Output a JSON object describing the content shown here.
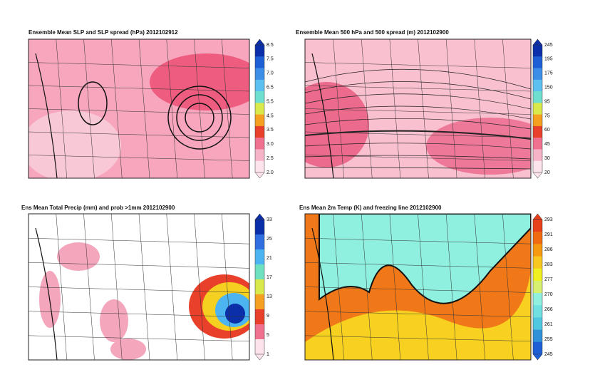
{
  "panels": [
    {
      "title": "Ensemble Mean SLP and SLP spread (hPa) 2012102912",
      "colorbar_labels": [
        "8.5",
        "7.5",
        "7.0",
        "6.5",
        "5.5",
        "4.5",
        "3.5",
        "3.0",
        "2.5",
        "2.0"
      ],
      "colors": [
        "#0a2fa8",
        "#1f5fd6",
        "#3c8ee6",
        "#5cc0f0",
        "#6fe0d0",
        "#d9e84a",
        "#f5a020",
        "#e8402a",
        "#f07090",
        "#f6b4c8",
        "#fde4ec"
      ]
    },
    {
      "title": "Ensemble Mean 500 hPa and 500 spread (m) 2012102900",
      "colorbar_labels": [
        "245",
        "195",
        "175",
        "150",
        "95",
        "75",
        "60",
        "45",
        "30",
        "20"
      ],
      "colors": [
        "#0a2fa8",
        "#1f5fd6",
        "#3c8ee6",
        "#5cc0f0",
        "#6fe0d0",
        "#d9e84a",
        "#f5a020",
        "#e8402a",
        "#f07090",
        "#f6b4c8",
        "#fde4ec"
      ]
    },
    {
      "title": "Ens Mean Total Precip (mm) and prob >1mm 2012102900",
      "colorbar_labels": [
        "33",
        "25",
        "21",
        "17",
        "13",
        "9",
        "5",
        "1"
      ],
      "colors": [
        "#0a2fa8",
        "#2f6fe0",
        "#4cb4f0",
        "#6fe0c0",
        "#d9e84a",
        "#f5a020",
        "#e8402a",
        "#f07090",
        "#fde4ec"
      ]
    },
    {
      "title": "Ens Mean 2m Temp (K) and freezing line 2012102900",
      "colorbar_labels": [
        "293",
        "291",
        "286",
        "283",
        "277",
        "270",
        "266",
        "261",
        "255",
        "245"
      ],
      "colors": [
        "#e8401a",
        "#f06a10",
        "#f59a10",
        "#f8c820",
        "#f0f020",
        "#d8f070",
        "#90f0e0",
        "#70e0e0",
        "#50c8e0",
        "#3090d8",
        "#1f5fd6"
      ]
    }
  ]
}
